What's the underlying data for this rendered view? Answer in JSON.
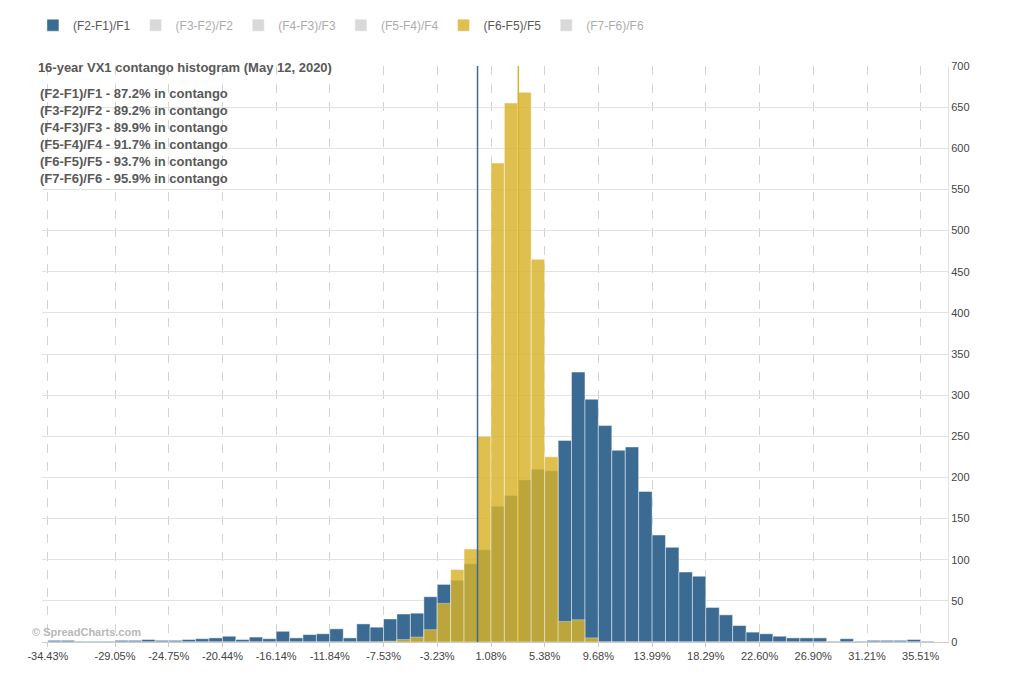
{
  "chart_data": {
    "type": "histogram",
    "title": "16-year VX1 contango histogram (May 12, 2020)",
    "annotations": [
      "(F2-F1)/F1 - 87.2% in contango",
      "(F3-F2)/F2 - 89.2% in contango",
      "(F4-F3)/F3 - 89.9% in contango",
      "(F5-F4)/F4 - 91.7% in contango",
      "(F6-F5)/F5 - 93.7% in contango",
      "(F7-F6)/F6 - 95.9% in contango"
    ],
    "credit": "© SpreadCharts.com",
    "bins": [
      -34.43,
      -33.36,
      -32.28,
      -31.21,
      -30.13,
      -29.05,
      -27.98,
      -26.9,
      -25.83,
      -24.75,
      -23.67,
      -22.6,
      -21.52,
      -20.44,
      -19.37,
      -18.29,
      -17.22,
      -16.14,
      -15.06,
      -13.99,
      -12.91,
      -11.84,
      -10.76,
      -9.68,
      -8.61,
      -7.53,
      -6.46,
      -5.38,
      -4.3,
      -3.23,
      -2.15,
      -1.08,
      0,
      1.08,
      2.15,
      3.23,
      4.3,
      5.38,
      6.46,
      7.53,
      8.61,
      9.68,
      10.76,
      11.84,
      12.91,
      13.99,
      15.06,
      16.14,
      17.22,
      18.29,
      19.37,
      20.44,
      21.52,
      22.6,
      23.67,
      24.75,
      25.83,
      26.9,
      27.98,
      29.05,
      30.13,
      31.21,
      32.28,
      33.36,
      34.43,
      35.51,
      36.59
    ],
    "series": [
      {
        "name": "(F2-F1)/F1",
        "color": "#3b6b93",
        "current": 0,
        "values": [
          2,
          2,
          1,
          1,
          1,
          2,
          2,
          3,
          2,
          2,
          3,
          4,
          5,
          7,
          3,
          6,
          4,
          13,
          5,
          9,
          10,
          16,
          5,
          22,
          18,
          28,
          34,
          35,
          55,
          70,
          75,
          95,
          112,
          165,
          178,
          197,
          210,
          208,
          245,
          328,
          295,
          263,
          233,
          237,
          183,
          130,
          115,
          85,
          80,
          42,
          33,
          20,
          12,
          10,
          7,
          5,
          5,
          5,
          1,
          4,
          1,
          2,
          2,
          2,
          3,
          1
        ]
      },
      {
        "name": "(F3-F2)/F2",
        "values": [
          null,
          null,
          null,
          null,
          null,
          null,
          null,
          null,
          null,
          null,
          null,
          null,
          null,
          null,
          null,
          null,
          null,
          null,
          null,
          null,
          null,
          null,
          null,
          null,
          null,
          null,
          null,
          null,
          null,
          null,
          null,
          null,
          null,
          null,
          null,
          null,
          null,
          null,
          null,
          null,
          null,
          null,
          null,
          null,
          null,
          null,
          null,
          null,
          null,
          null,
          null,
          null,
          null,
          null,
          null,
          null,
          null,
          null,
          null,
          null,
          null,
          null,
          null,
          null,
          null,
          null
        ]
      },
      {
        "name": "(F4-F3)/F3",
        "values": [
          null,
          null,
          null,
          null,
          null,
          null,
          null,
          null,
          null,
          null,
          null,
          null,
          null,
          null,
          null,
          null,
          null,
          null,
          null,
          null,
          null,
          null,
          null,
          null,
          null,
          null,
          null,
          null,
          null,
          null,
          null,
          null,
          null,
          null,
          null,
          null,
          null,
          null,
          null,
          null,
          null,
          null,
          null,
          null,
          null,
          null,
          null,
          null,
          null,
          null,
          null,
          null,
          null,
          null,
          null,
          null,
          null,
          null,
          null,
          null,
          null,
          null,
          null,
          null,
          null,
          null
        ]
      },
      {
        "name": "(F5-F4)/F4",
        "values": [
          null,
          null,
          null,
          null,
          null,
          null,
          null,
          null,
          null,
          null,
          null,
          null,
          null,
          null,
          null,
          null,
          null,
          null,
          null,
          null,
          null,
          null,
          null,
          null,
          null,
          null,
          null,
          null,
          null,
          null,
          null,
          null,
          null,
          null,
          null,
          null,
          null,
          null,
          null,
          null,
          null,
          null,
          null,
          null,
          null,
          null,
          null,
          null,
          null,
          null,
          null,
          null,
          null,
          null,
          null,
          null,
          null,
          null,
          null,
          null,
          null,
          null,
          null,
          null,
          null,
          null
        ]
      },
      {
        "name": "(F6-F5)/F5",
        "color": "#d9b227",
        "current": 3.27,
        "values": [
          0,
          0,
          0,
          0,
          0,
          0,
          0,
          0,
          0,
          0,
          0,
          0,
          0,
          0,
          0,
          0,
          0,
          0,
          0,
          0,
          0,
          0,
          0,
          0,
          0,
          1,
          3,
          6,
          15,
          47,
          88,
          113,
          250,
          582,
          655,
          668,
          465,
          225,
          25,
          27,
          5,
          0,
          0,
          0,
          0,
          0,
          0,
          0,
          0,
          0,
          0,
          0,
          0,
          0,
          0,
          0,
          0,
          0,
          0,
          0,
          0,
          0,
          0,
          0,
          0,
          0
        ]
      },
      {
        "name": "(F7-F6)/F6",
        "values": [
          null,
          null,
          null,
          null,
          null,
          null,
          null,
          null,
          null,
          null,
          null,
          null,
          null,
          null,
          null,
          null,
          null,
          null,
          null,
          null,
          null,
          null,
          null,
          null,
          null,
          null,
          null,
          null,
          null,
          null,
          null,
          null,
          null,
          null,
          null,
          null,
          null,
          null,
          null,
          null,
          null,
          null,
          null,
          null,
          null,
          null,
          null,
          null,
          null,
          null,
          null,
          null,
          null,
          null,
          null,
          null,
          null,
          null,
          null,
          null,
          null,
          null,
          null,
          null,
          null,
          null
        ]
      }
    ],
    "xlim": [
      -34.9,
      37.7
    ],
    "xticks": [
      {
        "value": -34.43,
        "label": "-34.43%"
      },
      {
        "value": -29.05,
        "label": "-29.05%"
      },
      {
        "value": -24.75,
        "label": "-24.75%"
      },
      {
        "value": -20.44,
        "label": "-20.44%"
      },
      {
        "value": -16.14,
        "label": "-16.14%"
      },
      {
        "value": -11.84,
        "label": "-11.84%"
      },
      {
        "value": -7.53,
        "label": "-7.53%"
      },
      {
        "value": -3.23,
        "label": "-3.23%"
      },
      {
        "value": 1.08,
        "label": "1.08%"
      },
      {
        "value": 5.38,
        "label": "5.38%"
      },
      {
        "value": 9.68,
        "label": "9.68%"
      },
      {
        "value": 13.99,
        "label": "13.99%"
      },
      {
        "value": 18.29,
        "label": "18.29%"
      },
      {
        "value": 22.6,
        "label": "22.60%"
      },
      {
        "value": 26.9,
        "label": "26.90%"
      },
      {
        "value": 31.21,
        "label": "31.21%"
      },
      {
        "value": 35.51,
        "label": "35.51%"
      }
    ],
    "ylim": [
      0,
      700
    ],
    "yticks": [
      0,
      50,
      100,
      150,
      200,
      250,
      300,
      350,
      400,
      450,
      500,
      550,
      600,
      650,
      700
    ],
    "grid": true,
    "legend": "top"
  }
}
